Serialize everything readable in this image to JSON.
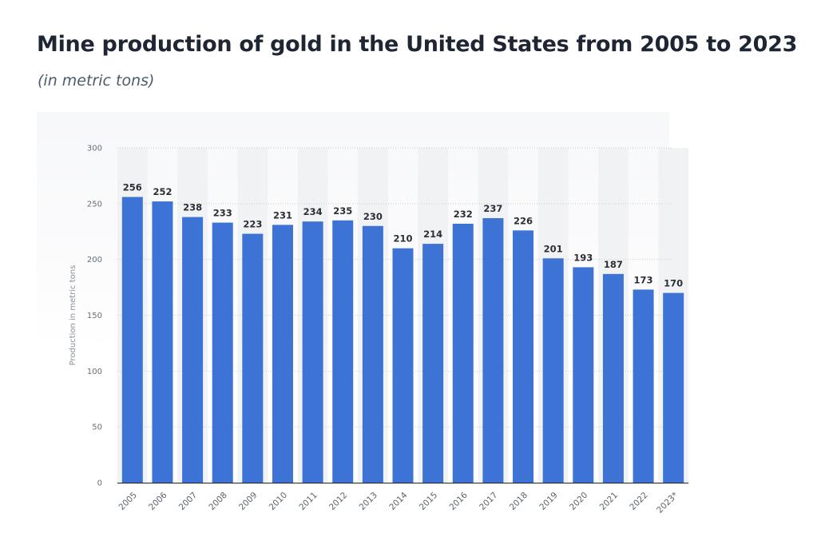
{
  "header": {
    "title": "Mine production of gold in the United States from 2005 to 2023",
    "subtitle": "(in metric tons)"
  },
  "colors": {
    "bar": "#3e73d6",
    "grid": "#c9ced6",
    "axis": "#222222"
  },
  "chart_data": {
    "type": "bar",
    "title": "Mine production of gold in the United States from 2005 to 2023",
    "subtitle": "(in metric tons)",
    "xlabel": "",
    "ylabel": "Production in metric tons",
    "categories": [
      "2005",
      "2006",
      "2007",
      "2008",
      "2009",
      "2010",
      "2011",
      "2012",
      "2013",
      "2014",
      "2015",
      "2016",
      "2017",
      "2018",
      "2019",
      "2020",
      "2021",
      "2022",
      "2023*"
    ],
    "values": [
      256,
      252,
      238,
      233,
      223,
      231,
      234,
      235,
      230,
      210,
      214,
      232,
      237,
      226,
      201,
      193,
      187,
      173,
      170
    ],
    "ylim": [
      0,
      300
    ],
    "yticks": [
      0,
      50,
      100,
      150,
      200,
      250,
      300
    ],
    "grid": true,
    "data_labels": true,
    "legend": "none"
  }
}
